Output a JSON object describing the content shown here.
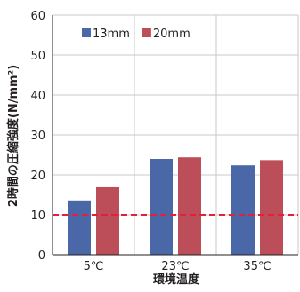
{
  "chart_data": {
    "type": "bar",
    "categories": [
      "5℃",
      "23℃",
      "35℃"
    ],
    "series": [
      {
        "name": "13mm",
        "values": [
          13.6,
          24.0,
          22.4
        ],
        "color": "#4a67a7"
      },
      {
        "name": "20mm",
        "values": [
          16.9,
          24.4,
          23.7
        ],
        "color": "#bb4e58"
      }
    ],
    "xlabel": "環境温度",
    "ylabel": "2時間の圧縮強度(N/mm²)",
    "ylim": [
      0,
      60
    ],
    "yticks": [
      0,
      10,
      20,
      30,
      40,
      50,
      60
    ],
    "grid": true,
    "legend_position": "top-left",
    "reference_line": {
      "value": 10,
      "style": "dashed",
      "color": "#e2203c"
    }
  }
}
